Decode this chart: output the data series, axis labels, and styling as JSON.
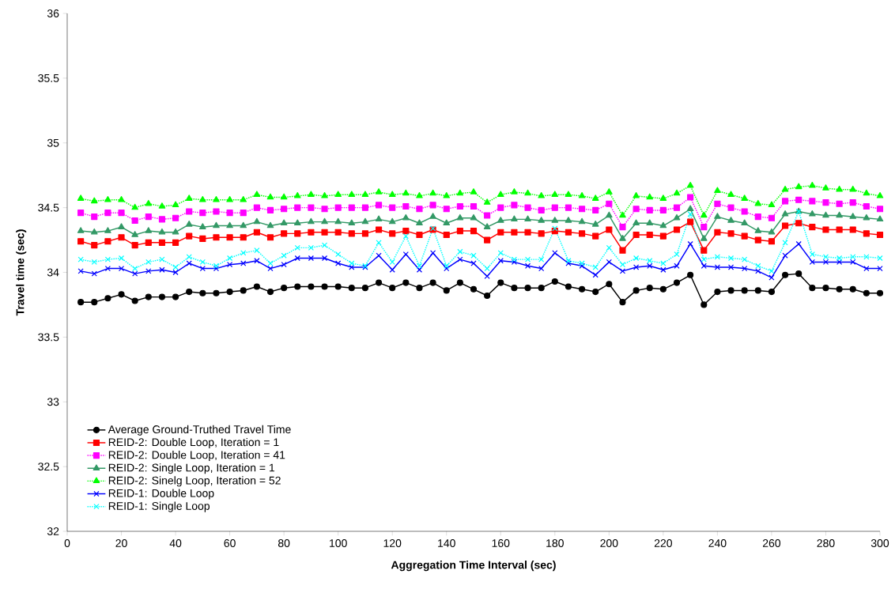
{
  "chart_data": {
    "type": "line",
    "xlabel": "Aggregation Time Interval (sec)",
    "ylabel": "Travel time (sec)",
    "x": [
      5,
      10,
      15,
      20,
      25,
      30,
      35,
      40,
      45,
      50,
      55,
      60,
      65,
      70,
      75,
      80,
      85,
      90,
      95,
      100,
      105,
      110,
      115,
      120,
      125,
      130,
      135,
      140,
      145,
      150,
      155,
      160,
      165,
      170,
      175,
      180,
      185,
      190,
      195,
      200,
      205,
      210,
      215,
      220,
      225,
      230,
      235,
      240,
      245,
      250,
      255,
      260,
      265,
      270,
      275,
      280,
      285,
      290,
      295,
      300
    ],
    "xlim": [
      0,
      300
    ],
    "xticks": [
      0,
      20,
      40,
      60,
      80,
      100,
      120,
      140,
      160,
      180,
      200,
      220,
      240,
      260,
      280,
      300
    ],
    "ylim": [
      32,
      36
    ],
    "yticks": [
      32,
      32.5,
      33,
      33.5,
      34,
      34.5,
      35,
      35.5,
      36
    ],
    "grid": false,
    "legend": "bottom left",
    "series": [
      {
        "name": "Average Ground-Truthed Travel Time",
        "color": "#000000",
        "marker": "circle",
        "line_style": "solid",
        "values": [
          33.77,
          33.77,
          33.8,
          33.83,
          33.78,
          33.81,
          33.81,
          33.81,
          33.85,
          33.84,
          33.84,
          33.85,
          33.86,
          33.89,
          33.85,
          33.88,
          33.89,
          33.89,
          33.89,
          33.89,
          33.88,
          33.88,
          33.92,
          33.88,
          33.92,
          33.88,
          33.92,
          33.86,
          33.92,
          33.87,
          33.82,
          33.92,
          33.88,
          33.88,
          33.88,
          33.93,
          33.89,
          33.87,
          33.85,
          33.91,
          33.77,
          33.86,
          33.88,
          33.87,
          33.92,
          33.98,
          33.75,
          33.85,
          33.86,
          33.86,
          33.86,
          33.85,
          33.98,
          33.99,
          33.88,
          33.88,
          33.87,
          33.87,
          33.84,
          33.84
        ]
      },
      {
        "name": "REID-2: Double Loop, Iteration = 1",
        "color": "#ff0000",
        "marker": "square",
        "line_style": "solid",
        "values": [
          34.24,
          34.21,
          34.24,
          34.27,
          34.21,
          34.23,
          34.23,
          34.23,
          34.28,
          34.26,
          34.27,
          34.27,
          34.27,
          34.31,
          34.27,
          34.3,
          34.3,
          34.31,
          34.31,
          34.31,
          34.3,
          34.3,
          34.33,
          34.3,
          34.32,
          34.29,
          34.33,
          34.29,
          34.32,
          34.32,
          34.25,
          34.31,
          34.31,
          34.31,
          34.3,
          34.32,
          34.31,
          34.3,
          34.28,
          34.33,
          34.17,
          34.29,
          34.29,
          34.28,
          34.33,
          34.39,
          34.17,
          34.31,
          34.3,
          34.28,
          34.25,
          34.24,
          34.36,
          34.38,
          34.35,
          34.33,
          34.33,
          34.33,
          34.3,
          34.29
        ]
      },
      {
        "name": "REID-2: Double Loop, Iteration = 41",
        "color": "#ff00ff",
        "marker": "square",
        "line_style": "dotted",
        "values": [
          34.46,
          34.43,
          34.46,
          34.46,
          34.4,
          34.43,
          34.41,
          34.42,
          34.47,
          34.46,
          34.47,
          34.46,
          34.46,
          34.5,
          34.48,
          34.49,
          34.5,
          34.5,
          34.49,
          34.5,
          34.5,
          34.5,
          34.52,
          34.5,
          34.51,
          34.49,
          34.52,
          34.49,
          34.51,
          34.51,
          34.44,
          34.5,
          34.52,
          34.5,
          34.48,
          34.5,
          34.5,
          34.49,
          34.48,
          34.53,
          34.35,
          34.49,
          34.48,
          34.48,
          34.5,
          34.58,
          34.35,
          34.53,
          34.5,
          34.47,
          34.43,
          34.42,
          34.55,
          34.56,
          34.55,
          34.54,
          34.53,
          34.54,
          34.51,
          34.49
        ]
      },
      {
        "name": "REID-2: Single Loop, Iteration = 1",
        "color": "#339966",
        "marker": "triangle",
        "line_style": "solid",
        "values": [
          34.32,
          34.31,
          34.32,
          34.35,
          34.29,
          34.32,
          34.31,
          34.31,
          34.37,
          34.35,
          34.36,
          34.36,
          34.36,
          34.39,
          34.36,
          34.38,
          34.38,
          34.39,
          34.39,
          34.39,
          34.38,
          34.39,
          34.41,
          34.39,
          34.42,
          34.38,
          34.43,
          34.38,
          34.42,
          34.42,
          34.35,
          34.4,
          34.41,
          34.41,
          34.4,
          34.4,
          34.4,
          34.39,
          34.37,
          34.44,
          34.26,
          34.38,
          34.38,
          34.36,
          34.42,
          34.49,
          34.26,
          34.43,
          34.4,
          34.38,
          34.32,
          34.31,
          34.45,
          34.47,
          34.45,
          34.44,
          34.44,
          34.43,
          34.42,
          34.41
        ]
      },
      {
        "name": "REID-2: Sinelg Loop, Iteration = 52",
        "color": "#00ff00",
        "marker": "triangle",
        "line_style": "dotted",
        "values": [
          34.57,
          34.55,
          34.56,
          34.56,
          34.5,
          34.53,
          34.51,
          34.52,
          34.57,
          34.56,
          34.56,
          34.56,
          34.56,
          34.6,
          34.58,
          34.58,
          34.59,
          34.6,
          34.59,
          34.6,
          34.6,
          34.6,
          34.62,
          34.6,
          34.61,
          34.59,
          34.61,
          34.59,
          34.61,
          34.62,
          34.54,
          34.6,
          34.62,
          34.61,
          34.59,
          34.6,
          34.6,
          34.59,
          34.57,
          34.62,
          34.44,
          34.59,
          34.58,
          34.57,
          34.61,
          34.67,
          34.44,
          34.63,
          34.6,
          34.57,
          34.53,
          34.52,
          34.64,
          34.66,
          34.67,
          34.65,
          34.64,
          34.64,
          34.61,
          34.59
        ]
      },
      {
        "name": "REID-1: Double Loop",
        "color": "#0000ff",
        "marker": "cross",
        "line_style": "solid",
        "values": [
          34.01,
          33.99,
          34.03,
          34.03,
          33.99,
          34.01,
          34.02,
          34.0,
          34.07,
          34.03,
          34.03,
          34.06,
          34.07,
          34.09,
          34.03,
          34.06,
          34.11,
          34.11,
          34.11,
          34.07,
          34.04,
          34.04,
          34.13,
          34.02,
          34.14,
          34.02,
          34.15,
          34.03,
          34.1,
          34.07,
          33.97,
          34.09,
          34.08,
          34.05,
          34.03,
          34.15,
          34.07,
          34.05,
          33.98,
          34.08,
          34.01,
          34.04,
          34.05,
          34.02,
          34.05,
          34.22,
          34.05,
          34.04,
          34.04,
          34.03,
          34.01,
          33.96,
          34.13,
          34.22,
          34.08,
          34.08,
          34.08,
          34.08,
          34.03,
          34.03
        ]
      },
      {
        "name": "REID-1: Single Loop",
        "color": "#00ffff",
        "marker": "cross",
        "line_style": "dotted",
        "values": [
          34.1,
          34.08,
          34.1,
          34.11,
          34.03,
          34.08,
          34.1,
          34.04,
          34.12,
          34.08,
          34.05,
          34.11,
          34.15,
          34.17,
          34.07,
          34.13,
          34.19,
          34.19,
          34.21,
          34.14,
          34.07,
          34.05,
          34.23,
          34.08,
          34.28,
          34.05,
          34.34,
          34.05,
          34.16,
          34.13,
          34.03,
          34.15,
          34.1,
          34.1,
          34.1,
          34.34,
          34.09,
          34.07,
          34.04,
          34.19,
          34.06,
          34.11,
          34.09,
          34.07,
          34.14,
          34.45,
          34.1,
          34.12,
          34.11,
          34.1,
          34.05,
          34.01,
          34.23,
          34.47,
          34.14,
          34.12,
          34.11,
          34.12,
          34.12,
          34.11
        ]
      }
    ]
  }
}
